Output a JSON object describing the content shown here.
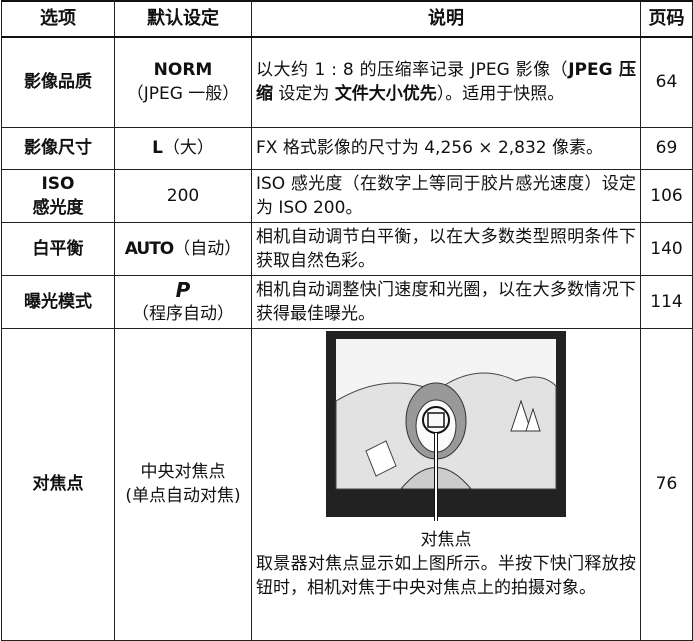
{
  "header": [
    "选项",
    "默认设定",
    "说明",
    "页码"
  ],
  "rows": [
    {
      "option": [
        "影像品质"
      ],
      "default": [
        "NORM",
        "（JPEG 一般）"
      ],
      "description": [
        {
          "text": "以大约 1 : 8 的压缩率记录 JPEG 影像（"
        },
        {
          "text": "JPEG 压缩",
          "bold": true
        },
        {
          "text": " 设定为 "
        },
        {
          "text": "文件大小优先",
          "bold": true
        },
        {
          "text": "）。适用于快照。"
        }
      ],
      "page": 64
    },
    {
      "option": [
        "影像尺寸"
      ],
      "default": [
        "L",
        "（大）"
      ],
      "description": [
        {
          "text": "FX 格式影像的尺寸为 4,256 × 2,832 像素。"
        }
      ],
      "page": 69
    },
    {
      "option": [
        "ISO",
        "感光度"
      ],
      "default": [
        "200"
      ],
      "description": [
        {
          "text": "ISO 感光度（在数字上等同于胶片感光速度）设定为 ISO 200。"
        }
      ],
      "page": 106
    },
    {
      "option": [
        "白平衡"
      ],
      "default": [
        "AUTO",
        "（自动）"
      ],
      "description": [
        {
          "text": "相机自动调节白平衡，以在大多数类型照明条件下获取自然色彩。"
        }
      ],
      "page": 140
    },
    {
      "option": [
        "曝光模式"
      ],
      "default": [
        "P",
        "（程序自动）"
      ],
      "description": [
        {
          "text": "相机自动调整快门速度和光圈，以在大多数情况下获得最佳曝光。"
        }
      ],
      "page": 114
    },
    {
      "option": [
        "对焦点"
      ],
      "default": [
        "中央对焦点",
        "(单点自动对焦)"
      ],
      "figure_caption": "对焦点",
      "description": [
        {
          "text": "取景器对焦点显示如上图所示。半按下快门释放按钮时，相机对焦于中央对焦点上的拍摄对象。"
        }
      ],
      "page": 76
    }
  ]
}
